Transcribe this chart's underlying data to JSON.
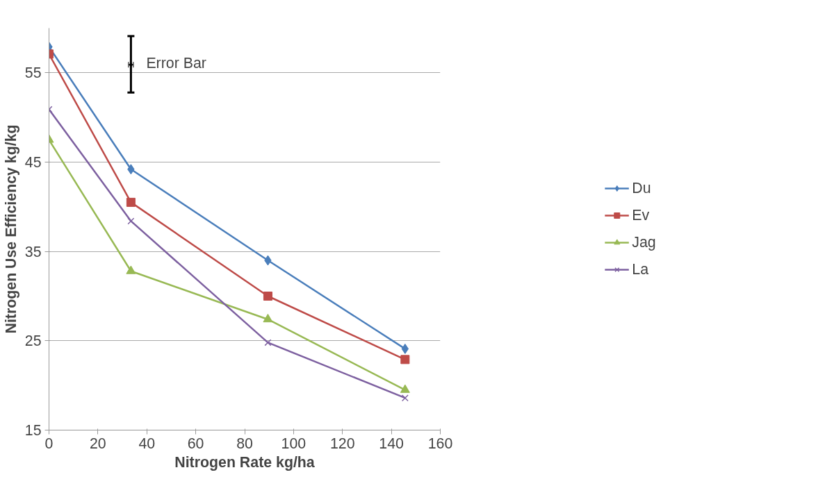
{
  "chart_data": {
    "type": "line",
    "xlabel": "Nitrogen Rate kg/ha",
    "ylabel": "Nitrogen Use Efficiency kg/kg",
    "x": [
      0,
      33.5,
      89.5,
      145.6
    ],
    "series": [
      {
        "name": "Du",
        "color": "#4a7ebb",
        "marker": "diamond",
        "values": [
          57.9,
          44.2,
          34.0,
          24.1
        ]
      },
      {
        "name": "Ev",
        "color": "#be4b48",
        "marker": "square",
        "values": [
          57.1,
          40.5,
          30.0,
          22.9
        ]
      },
      {
        "name": "Jag",
        "color": "#98b954",
        "marker": "triangle",
        "values": [
          47.5,
          32.8,
          27.4,
          19.5
        ]
      },
      {
        "name": "La",
        "color": "#7d60a0",
        "marker": "cross",
        "values": [
          50.9,
          38.4,
          24.8,
          18.6
        ]
      },
      {
        "type": "scatter",
        "color": "#000000",
        "marker": "circle",
        "x": [
          33.5
        ],
        "values": [
          55.9
        ],
        "errors": [
          [
            52.8,
            59.1
          ]
        ],
        "xerrors": [
          [
            32.5,
            34.5
          ]
        ]
      }
    ],
    "annotations": [
      {
        "text": "Error Bar",
        "x": 33.5,
        "y": 55.9
      }
    ],
    "xlim": [
      0,
      160
    ],
    "xticks": [
      0,
      20,
      40,
      60,
      80,
      100,
      120,
      140,
      160
    ],
    "ylim": [
      15,
      60
    ],
    "yticks": [
      15,
      25,
      35,
      45,
      55
    ],
    "grid": "y",
    "legend": "right",
    "line_style": "solid"
  }
}
